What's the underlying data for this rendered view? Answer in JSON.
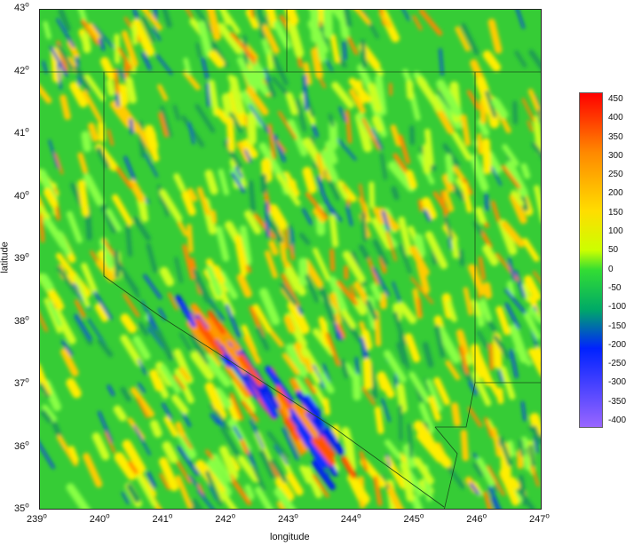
{
  "chart_data": {
    "type": "heatmap",
    "xlabel": "longitude",
    "ylabel": "latitude",
    "xlim": [
      239,
      247
    ],
    "ylim": [
      35,
      43
    ],
    "x_ticks": [
      239,
      240,
      241,
      242,
      243,
      244,
      245,
      246,
      247
    ],
    "y_ticks": [
      35,
      36,
      37,
      38,
      39,
      40,
      41,
      42,
      43
    ],
    "tick_unit_symbol": "o",
    "colorbar": {
      "min": -400,
      "max": 450,
      "ticks": [
        450,
        400,
        350,
        300,
        250,
        200,
        150,
        100,
        50,
        0,
        -50,
        -100,
        -150,
        -200,
        -250,
        -300,
        -350,
        -400
      ],
      "stops": [
        {
          "value": 450,
          "color": "#ff0000"
        },
        {
          "value": 300,
          "color": "#ff8800"
        },
        {
          "value": 150,
          "color": "#ffdd00"
        },
        {
          "value": 50,
          "color": "#ccff00"
        },
        {
          "value": 0,
          "color": "#33dd33"
        },
        {
          "value": -100,
          "color": "#00aa66"
        },
        {
          "value": -200,
          "color": "#0022ff"
        },
        {
          "value": -400,
          "color": "#9966ff"
        }
      ]
    },
    "background_color": "#33cc33"
  }
}
